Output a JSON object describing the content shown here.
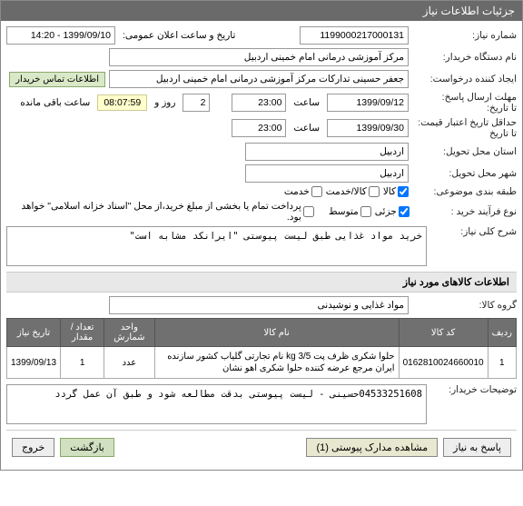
{
  "panel_title": "جزئیات اطلاعات نیاز",
  "labels": {
    "request_no": "شماره نیاز:",
    "announce_dt": "تاریخ و ساعت اعلان عمومی:",
    "buyer_org": "نام دستگاه خریدار:",
    "creator": "ایجاد کننده درخواست:",
    "buyer_contact_btn": "اطلاعات تماس خریدار",
    "reply_deadline": "مهلت ارسال پاسخ:",
    "to_date": "تا تاریخ:",
    "hour": "ساعت",
    "day_and": "روز و",
    "time_remaining": "ساعت باقی مانده",
    "price_validity": "حداقل تاریخ اعتبار قیمت: تا تاریخ",
    "delivery_province": "استان محل تحویل:",
    "delivery_city": "شهر محل تحویل:",
    "budget_class": "طبقه بندی موضوعی:",
    "purchase_type": "نوع فرآیند خرید :",
    "budget_note": "پرداخت تمام یا بخشی از مبلغ خرید،از محل \"اسناد خزانه اسلامی\" خواهد بود.",
    "general_desc": "شرح کلی نیاز:",
    "items_section": "اطلاعات کالاهای مورد نیاز",
    "item_group": "گروه کالا:",
    "buyer_notes": "توضیحات خریدار:",
    "view_attach": "مشاهده مدارک پیوستی (1)",
    "reply": "پاسخ به نیاز",
    "back": "بازگشت",
    "exit": "خروج"
  },
  "values": {
    "request_no": "1199000217000131",
    "announce_dt": "1399/09/10 - 14:20",
    "buyer_org": "مرکز آموزشی درمانی امام خمینی اردبیل",
    "creator": "جعفر حسینی تدارکات  مرکز آموزشی درمانی امام خمینی اردبیل",
    "reply_date": "1399/09/12",
    "reply_hour": "23:00",
    "countdown_days": "2",
    "countdown_time": "08:07:59",
    "price_date": "1399/09/30",
    "price_hour": "23:00",
    "province": "اردبیل",
    "city": "اردبیل",
    "general_desc": "خرید مواد غذایی طبق لیست پیوستی \"ایرانکد مشابه است\"",
    "item_group": "مواد غذایی و نوشیدنی",
    "buyer_notes": "04533251608حسینی - لیست پیوستی بدقت مطالعه شود و طبق آن عمل گردد"
  },
  "budget_options": [
    {
      "label": "کالا",
      "checked": true
    },
    {
      "label": "کالا/خدمت",
      "checked": false
    },
    {
      "label": "خدمت",
      "checked": false
    }
  ],
  "purchase_options": [
    {
      "label": "جزئی",
      "checked": true
    },
    {
      "label": "متوسط",
      "checked": false
    }
  ],
  "budget_note_checked": false,
  "table": {
    "headers": [
      "ردیف",
      "کد کالا",
      "نام کالا",
      "واحد شمارش",
      "تعداد / مقدار",
      "تاریخ نیاز"
    ],
    "rows": [
      {
        "idx": "1",
        "code": "0162810024660010",
        "name": "حلوا شکری ظرف پت 3/5 kg نام تجارتی گلیاب کشور سازنده ایران مرجع عرضه کننده حلوا شکری اهو نشان",
        "unit": "عدد",
        "qty": "1",
        "date": "1399/09/13"
      }
    ]
  },
  "colors": {
    "header_bg": "#6a6a6a",
    "header_fg": "#ffffff",
    "info_btn_bg": "#d9e8c7",
    "countdown_bg": "#ffffcc",
    "th_bg": "#707070"
  }
}
